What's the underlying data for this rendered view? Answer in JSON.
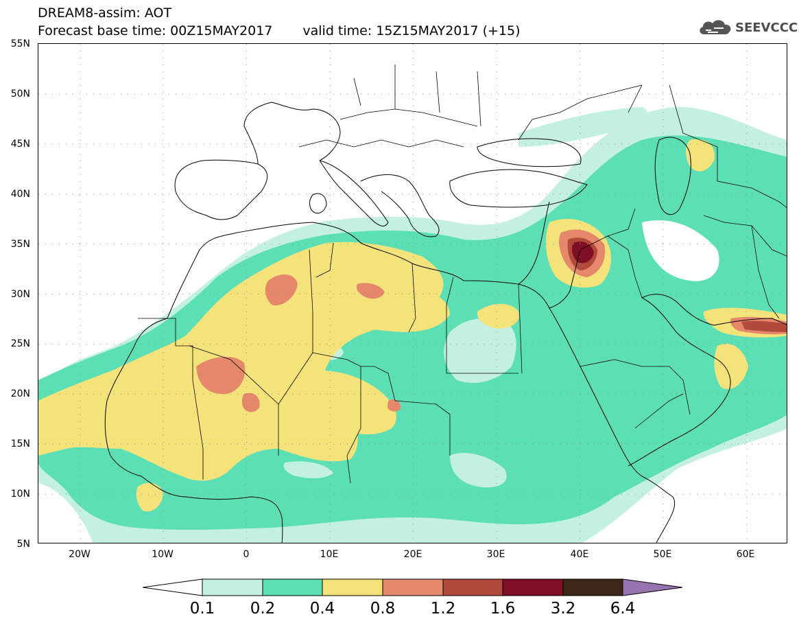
{
  "header": {
    "title_line1": "DREAM8-assim: AOT",
    "base_time": "Forecast base time: 00Z15MAY2017",
    "valid_time": "valid time: 15Z15MAY2017 (+15)",
    "logo_text": "SEEVCCC",
    "logo_icon": "cloud-icon"
  },
  "map": {
    "projection": "cylindrical equidistant",
    "lon_range": [
      -25,
      65
    ],
    "lat_range": [
      5,
      55
    ],
    "grid": "dotted",
    "lat_labels": [
      "55N",
      "50N",
      "45N",
      "40N",
      "35N",
      "30N",
      "25N",
      "20N",
      "15N",
      "10N",
      "5N"
    ],
    "lon_labels": [
      "20W",
      "10W",
      "0",
      "10E",
      "20E",
      "30E",
      "40E",
      "50E",
      "60E"
    ]
  },
  "colorbar": {
    "levels": [
      "0.1",
      "0.2",
      "0.4",
      "0.8",
      "1.2",
      "1.6",
      "3.2",
      "6.4"
    ],
    "colors": [
      "#c4f0e4",
      "#5ddfb6",
      "#f4e27a",
      "#e5876b",
      "#b24a3b",
      "#7f0f24",
      "#3e2618",
      "#9674b0"
    ],
    "lower_extend_color": "#ffffff",
    "upper_extend_color": "#9674b0"
  }
}
